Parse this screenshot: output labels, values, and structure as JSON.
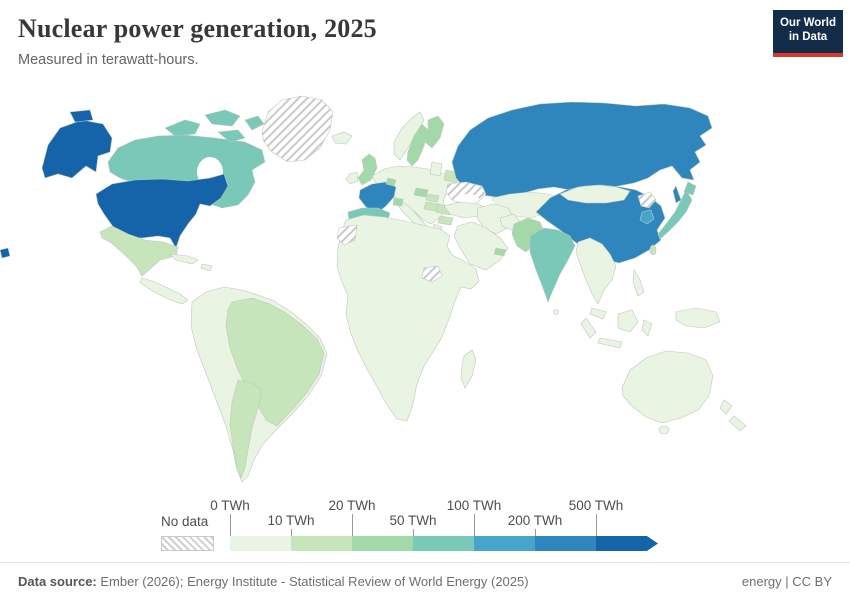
{
  "header": {
    "title": "Nuclear power generation, 2025",
    "subtitle": "Measured in terawatt-hours."
  },
  "logo": {
    "line1": "Our World",
    "line2": "in Data",
    "bg_color": "#132c4a",
    "accent_color": "#d93a2b"
  },
  "legend": {
    "no_data_label": "No data",
    "ticks": [
      "0 TWh",
      "10 TWh",
      "20 TWh",
      "50 TWh",
      "100 TWh",
      "200 TWh",
      "500 TWh"
    ],
    "bins": [
      "0-10",
      "10-20",
      "20-50",
      "50-100",
      "100-200",
      "200-500",
      "500+"
    ],
    "colors": [
      "#e9f4e2",
      "#c6e5bb",
      "#a3d9a9",
      "#7ac8b7",
      "#47a4cd",
      "#2f86bd",
      "#1563a9"
    ]
  },
  "footer": {
    "source_bold": "Data source:",
    "source_rest": " Ember (2026); Energy Institute - Statistical Review of World Energy (2025)",
    "license": "energy | CC BY"
  },
  "chart_data": {
    "type": "heatmap",
    "subtype": "choropleth-world-map",
    "title": "Nuclear power generation, 2025",
    "unit": "TWh",
    "legend_position": "bottom",
    "scale_type": "binned-sequential-green-blue",
    "scale_bins": [
      "0-10",
      "10-20",
      "20-50",
      "50-100",
      "100-200",
      "200-500",
      "500+"
    ],
    "scale_colors": [
      "#e9f4e2",
      "#c6e5bb",
      "#a3d9a9",
      "#7ac8b7",
      "#47a4cd",
      "#2f86bd",
      "#1563a9"
    ],
    "no_data_label": "No data",
    "default_bin": "0-10",
    "values_by_country_bin": {
      "United States": "500+",
      "France": "200-500",
      "Russia": "200-500",
      "China": "200-500",
      "South Korea": "100-200",
      "Canada": "50-100",
      "Japan": "50-100",
      "India": "50-100",
      "Spain": "50-100",
      "United Kingdom": "20-50",
      "Sweden": "20-50",
      "Finland": "20-50",
      "Belgium": "20-50",
      "Switzerland": "20-50",
      "Czechia": "20-50",
      "Pakistan": "20-50",
      "United Arab Emirates": "20-50",
      "Mexico": "10-20",
      "Brazil": "10-20",
      "Argentina": "10-20",
      "Slovakia": "10-20",
      "Hungary": "10-20",
      "Romania": "10-20",
      "Bulgaria": "10-20",
      "Belarus": "10-20",
      "Taiwan": "10-20",
      "Ukraine": "No data",
      "Greenland": "No data",
      "North Korea": "No data",
      "Western Sahara": "No data",
      "South Sudan": "No data"
    }
  }
}
